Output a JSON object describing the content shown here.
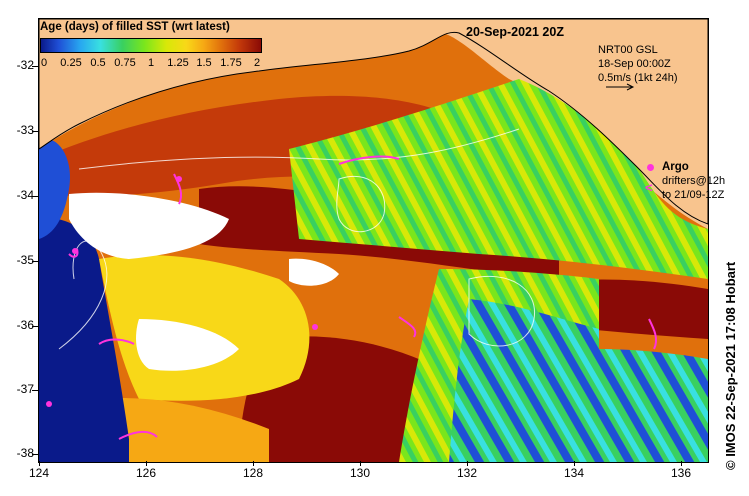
{
  "legend": {
    "title": "Age (days) of filled SST (wrt latest)",
    "tick_labels": [
      "0",
      "0.25",
      "0.5",
      "0.75",
      "1",
      "1.25",
      "1.5",
      "1.75",
      "2"
    ],
    "range": [
      0,
      2
    ],
    "colors": [
      "#0a1a8a",
      "#1f4fd6",
      "#28a8f0",
      "#39e0e0",
      "#39d060",
      "#7ae61c",
      "#d8e808",
      "#f8d818",
      "#f6a814",
      "#e0700c",
      "#c43a0a",
      "#8a0a06"
    ]
  },
  "header": {
    "date": "20-Sep-2021 20Z"
  },
  "currents": {
    "line1": "NRT00 GSL",
    "line2": "18-Sep 00:00Z",
    "line3": "0.5m/s (1kt 24h)",
    "arrow_icon": "arrow-right-icon"
  },
  "argo": {
    "label": "Argo",
    "color": "#ff33dd",
    "icon": "circle-icon"
  },
  "drifters": {
    "line1": "drifters@12h",
    "line2": "to 21/09-12Z",
    "icon": "chevron-left-icon"
  },
  "axes": {
    "y_labels": [
      "-32",
      "-33",
      "-34",
      "-35",
      "-36",
      "-37",
      "-38"
    ],
    "x_labels": [
      "124",
      "126",
      "128",
      "130",
      "132",
      "134",
      "136"
    ],
    "lat_range": [
      -38.1,
      -31.3
    ],
    "lon_range": [
      124,
      136.6
    ]
  },
  "credit": "© IMOS 22-Sep-2021 17:08 Hobart",
  "land_color": "#f8c48e"
}
